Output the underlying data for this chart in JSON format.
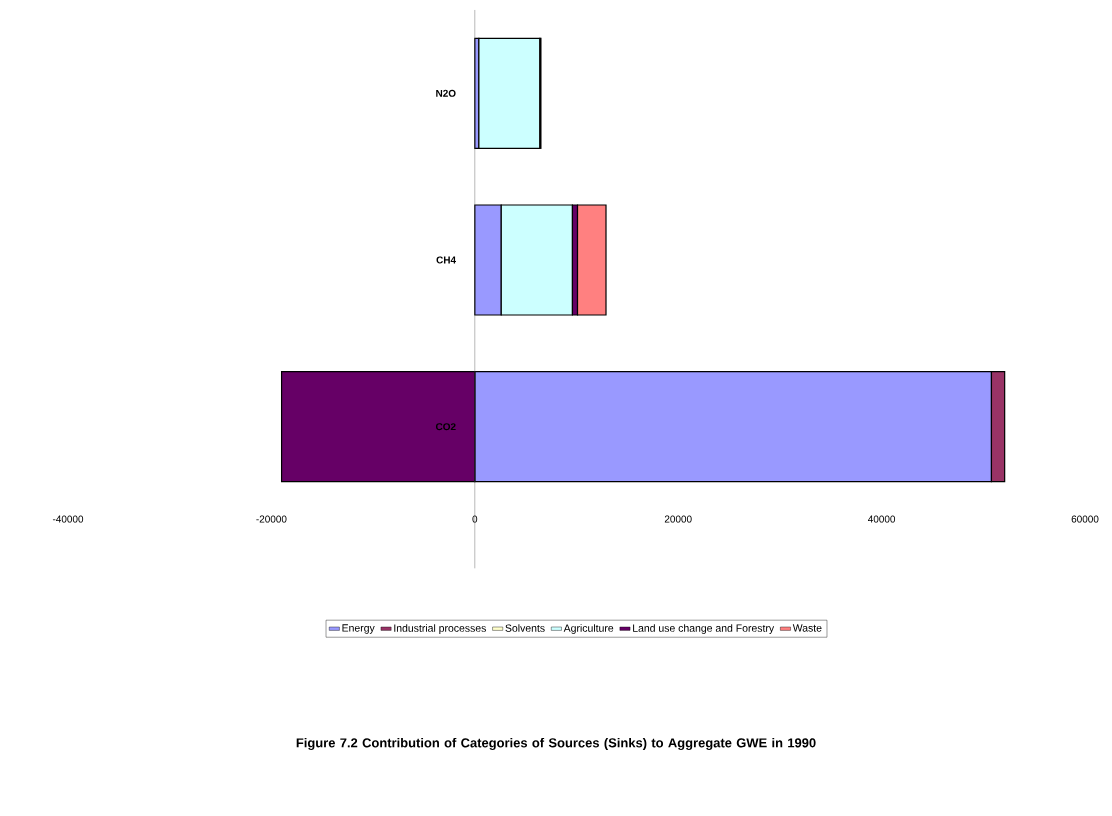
{
  "chart_data": {
    "type": "bar",
    "orientation": "horizontal",
    "stacked": true,
    "title": "Figure 7.2 Contribution of Categories of Sources (Sinks) to Aggregate GWE in 1990",
    "categories": [
      "N2O",
      "CH4",
      "CO2"
    ],
    "series": [
      {
        "name": "Energy",
        "color": "#9999ff",
        "values": [
          400,
          2600,
          50800
        ]
      },
      {
        "name": "Industrial processes",
        "color": "#993366",
        "values": [
          null,
          null,
          1300
        ]
      },
      {
        "name": "Solvents",
        "color": "#ffffcc",
        "values": [
          null,
          0,
          0
        ]
      },
      {
        "name": "Agriculture",
        "color": "#ccffff",
        "values": [
          6000,
          7000,
          0
        ]
      },
      {
        "name": "Land use change and Forestry",
        "color": "#660066",
        "values": [
          0,
          500,
          -19000
        ]
      },
      {
        "name": "Waste",
        "color": "#ff8080",
        "values": [
          100,
          2800,
          0
        ]
      }
    ],
    "xlim": [
      -40000,
      60000
    ],
    "xticks": [
      -40000,
      -20000,
      0,
      20000,
      40000,
      60000
    ],
    "legend": "bottom",
    "grid": false
  }
}
